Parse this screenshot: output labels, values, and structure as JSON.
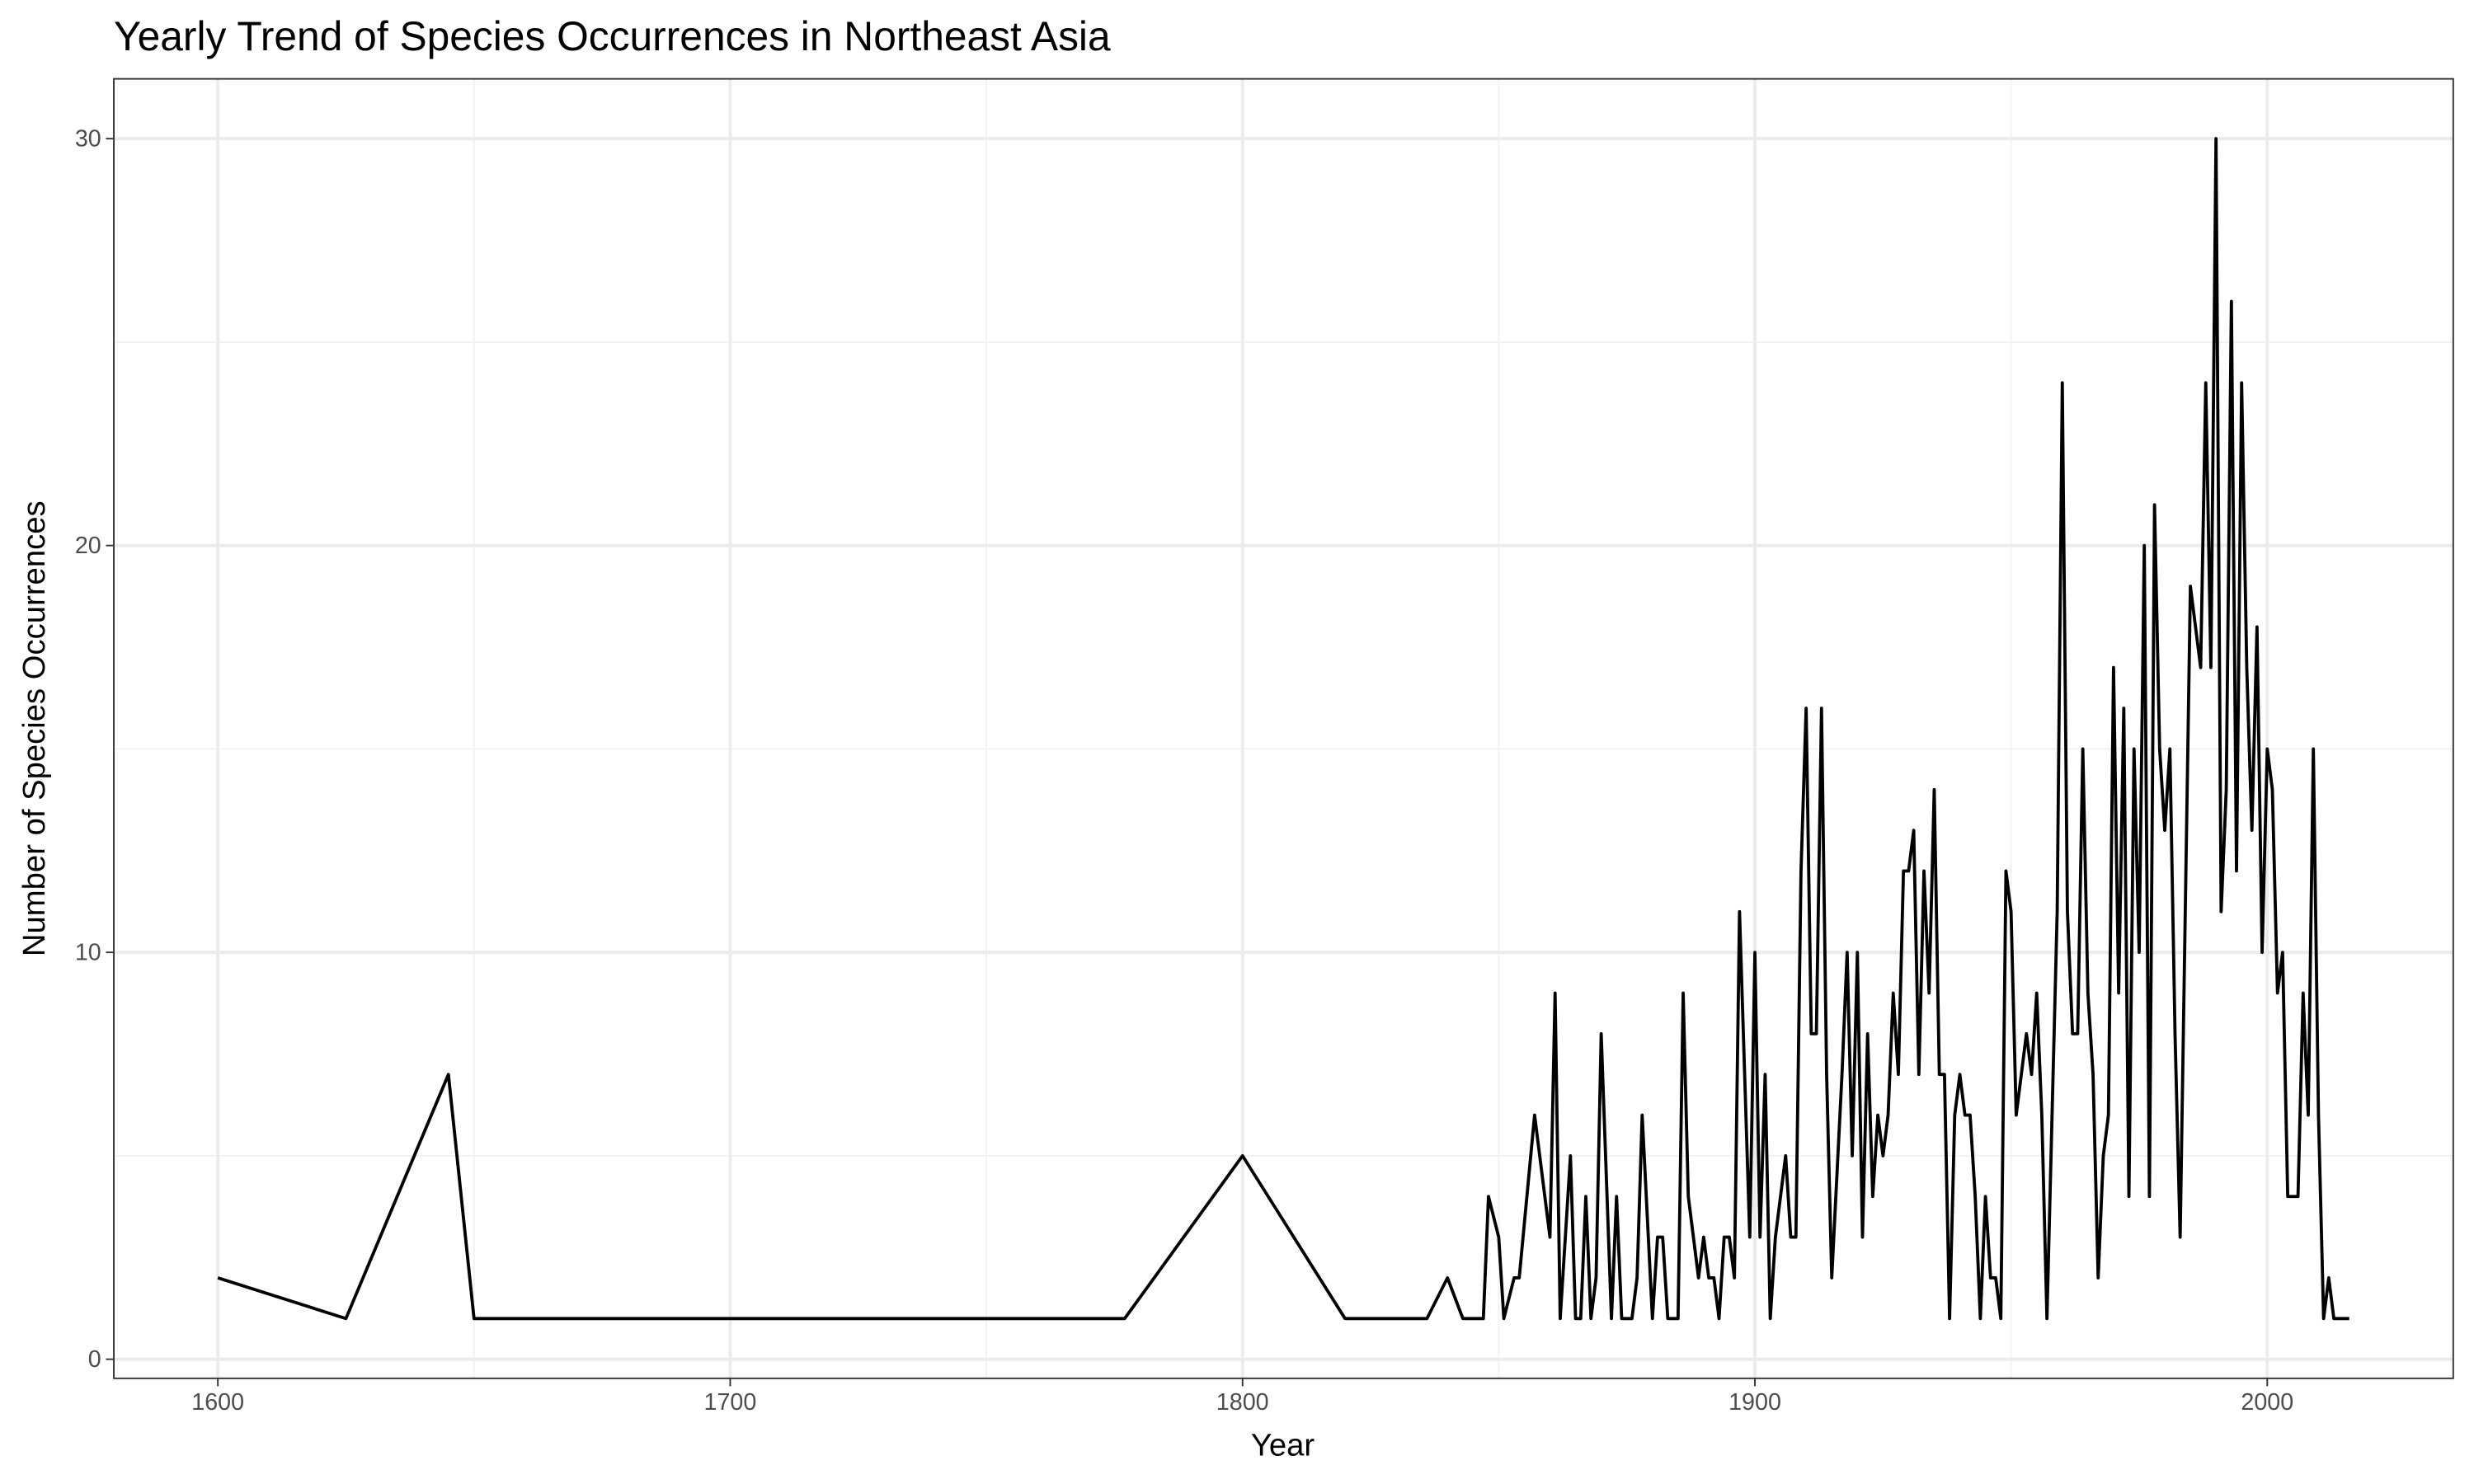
{
  "chart_data": {
    "type": "line",
    "title": "Yearly Trend of Species Occurrences in Northeast Asia",
    "x_label": "Year",
    "y_label": "Number of Species Occurrences",
    "x": [
      1600,
      1625,
      1645,
      1650,
      1777,
      1800,
      1820,
      1836,
      1840,
      1843,
      1846,
      1847,
      1848,
      1850,
      1851,
      1853,
      1854,
      1857,
      1860,
      1861,
      1862,
      1864,
      1865,
      1866,
      1867,
      1868,
      1869,
      1870,
      1872,
      1873,
      1874,
      1876,
      1877,
      1878,
      1880,
      1881,
      1882,
      1883,
      1885,
      1886,
      1887,
      1889,
      1890,
      1891,
      1892,
      1893,
      1894,
      1895,
      1896,
      1897,
      1898,
      1899,
      1900,
      1901,
      1902,
      1903,
      1904,
      1906,
      1907,
      1908,
      1909,
      1910,
      1911,
      1912,
      1913,
      1914,
      1915,
      1917,
      1918,
      1919,
      1920,
      1921,
      1922,
      1923,
      1924,
      1925,
      1926,
      1927,
      1928,
      1929,
      1930,
      1931,
      1932,
      1933,
      1934,
      1935,
      1936,
      1937,
      1938,
      1939,
      1940,
      1941,
      1942,
      1943,
      1944,
      1945,
      1946,
      1947,
      1948,
      1949,
      1950,
      1951,
      1952,
      1953,
      1954,
      1955,
      1956,
      1957,
      1959,
      1960,
      1961,
      1962,
      1963,
      1964,
      1965,
      1966,
      1967,
      1968,
      1969,
      1970,
      1971,
      1972,
      1973,
      1974,
      1975,
      1976,
      1977,
      1978,
      1979,
      1980,
      1981,
      1982,
      1983,
      1984,
      1985,
      1986,
      1987,
      1988,
      1989,
      1990,
      1991,
      1992,
      1993,
      1994,
      1995,
      1996,
      1997,
      1998,
      1999,
      2000,
      2001,
      2002,
      2003,
      2004,
      2005,
      2006,
      2007,
      2008,
      2009,
      2010,
      2011,
      2012,
      2013,
      2016
    ],
    "values": [
      2,
      1,
      7,
      1,
      1,
      5,
      1,
      1,
      2,
      1,
      1,
      1,
      4,
      3,
      1,
      2,
      2,
      6,
      3,
      9,
      1,
      5,
      1,
      1,
      4,
      1,
      2,
      8,
      1,
      4,
      1,
      1,
      2,
      6,
      1,
      3,
      3,
      1,
      1,
      9,
      4,
      2,
      3,
      2,
      2,
      1,
      3,
      3,
      2,
      11,
      7,
      3,
      10,
      3,
      7,
      1,
      3,
      5,
      3,
      3,
      12,
      16,
      8,
      8,
      16,
      7,
      2,
      7,
      10,
      5,
      10,
      3,
      8,
      4,
      6,
      5,
      6,
      9,
      7,
      12,
      12,
      13,
      7,
      12,
      9,
      14,
      7,
      7,
      1,
      6,
      7,
      6,
      6,
      4,
      1,
      4,
      2,
      2,
      1,
      12,
      11,
      6,
      7,
      8,
      7,
      9,
      6,
      1,
      11,
      24,
      11,
      8,
      8,
      15,
      9,
      7,
      2,
      5,
      6,
      17,
      9,
      16,
      4,
      15,
      10,
      20,
      4,
      21,
      15,
      13,
      15,
      8,
      3,
      11,
      19,
      18,
      17,
      24,
      17,
      30,
      11,
      14,
      26,
      12,
      24,
      17,
      13,
      18,
      10,
      15,
      14,
      9,
      10,
      4,
      4,
      4,
      9,
      6,
      15,
      6,
      1,
      2,
      1,
      1
    ],
    "color": "#000000",
    "xlim": [
      1579.7,
      2036.3
    ],
    "ylim": [
      -0.47,
      31.47
    ],
    "xticks": [
      1600,
      1700,
      1800,
      1900,
      2000
    ],
    "yticks": [
      0,
      10,
      20,
      30
    ],
    "grid": true,
    "minor_grid": true
  }
}
